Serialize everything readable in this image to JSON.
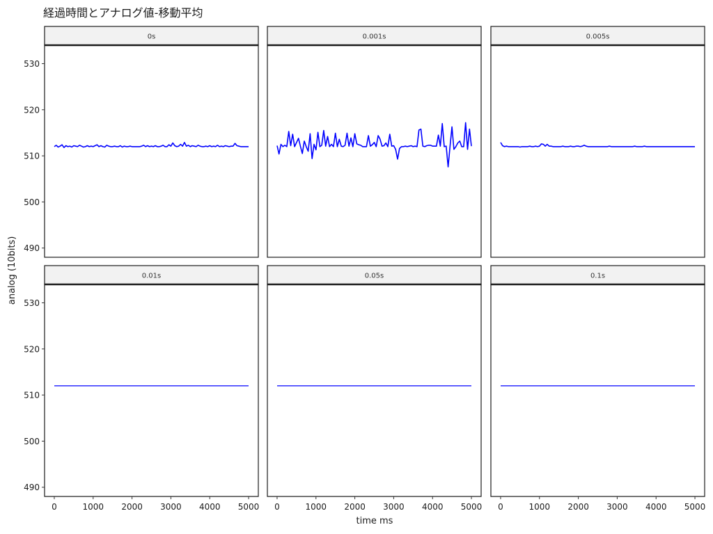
{
  "chart_data": {
    "type": "line",
    "title": "経過時間とアナログ値-移動平均",
    "xlabel": "time ms",
    "ylabel": "analog (10bits)",
    "xlim": [
      -250,
      5250
    ],
    "ylim": [
      488,
      534
    ],
    "x_ticks": [
      0,
      1000,
      2000,
      3000,
      4000,
      5000
    ],
    "y_ticks": [
      490,
      500,
      510,
      520,
      530
    ],
    "grid": false,
    "legend": "none",
    "line_color": "#0000ff",
    "facet_layout": {
      "rows": 2,
      "cols": 3
    },
    "facets": [
      {
        "label": "0s",
        "x_step": 50,
        "values": [
          512,
          512.3,
          511.9,
          512.1,
          512.4,
          511.8,
          512.2,
          512,
          512.1,
          511.9,
          512.2,
          512.1,
          512,
          512.3,
          512.1,
          511.9,
          512,
          512.2,
          512,
          512.1,
          512,
          512.2,
          512.4,
          512,
          512.2,
          512,
          511.9,
          512.3,
          512.1,
          512,
          512,
          512.1,
          512,
          512,
          512.2,
          511.9,
          512.1,
          512,
          512,
          512.1,
          512,
          512,
          512,
          512,
          512,
          512.1,
          512.3,
          512,
          512.2,
          512,
          512.1,
          512,
          512.2,
          512,
          512,
          512.1,
          512.3,
          512,
          512,
          512.4,
          512.1,
          512.8,
          512.2,
          512,
          512.1,
          512.5,
          512.1,
          512.9,
          512.1,
          512.3,
          512,
          512.2,
          512.1,
          512,
          512.3,
          512.1,
          512,
          512,
          512.1,
          512,
          512.2,
          512,
          512.1,
          512,
          512.3,
          512,
          512.1,
          512,
          512.2,
          512.1,
          512,
          512.1,
          512.1,
          512.7,
          512.2,
          512.1,
          512,
          512,
          512,
          512,
          512
        ]
      },
      {
        "label": "0.001s",
        "x_step": 50,
        "values": [
          512.2,
          510.4,
          512.5,
          512,
          512.3,
          512,
          515.3,
          512.2,
          514.7,
          512,
          512.9,
          513.8,
          512.1,
          510.5,
          513.2,
          512,
          511,
          514.8,
          509.4,
          512.5,
          511.3,
          515.1,
          512,
          512.3,
          515.5,
          512.1,
          514.2,
          512,
          512.5,
          512,
          514.9,
          512,
          513.6,
          512.1,
          512,
          512.3,
          514.9,
          512.1,
          513.9,
          512,
          514.8,
          512.6,
          512.4,
          512.3,
          512,
          512,
          512,
          514.4,
          512.1,
          512.4,
          512.9,
          512,
          514.4,
          513.6,
          512.1,
          512.2,
          512.8,
          512,
          514.7,
          512.1,
          512.2,
          511.4,
          509.3,
          511.6,
          512,
          512,
          512.1,
          512,
          512.1,
          512.2,
          512,
          512.1,
          512,
          515.6,
          515.8,
          512.1,
          512,
          512.2,
          512.3,
          512.3,
          512.1,
          512.1,
          512.1,
          514.5,
          512.1,
          517,
          512,
          512.1,
          507.6,
          512,
          516.3,
          511.4,
          512,
          512.8,
          513.2,
          512,
          512,
          517.2,
          511.4,
          515.8,
          512.1
        ]
      },
      {
        "label": "0.005s",
        "x_step": 50,
        "values": [
          512.9,
          512.2,
          512,
          512.1,
          512,
          512,
          512,
          512,
          512,
          512,
          511.9,
          512,
          512,
          512,
          512,
          512.1,
          512,
          512,
          512.1,
          512,
          512.1,
          512.6,
          512.5,
          512.1,
          512.5,
          512.1,
          512.1,
          512,
          512,
          512,
          512,
          512,
          512.1,
          512,
          512,
          512,
          512.1,
          512,
          512,
          512.1,
          512.1,
          512,
          512.1,
          512.3,
          512.1,
          512,
          512,
          512,
          512,
          512,
          512,
          512,
          512,
          512,
          512,
          512,
          512.1,
          512,
          512,
          512,
          512,
          512,
          512,
          512,
          512,
          512,
          512,
          512,
          512,
          512.1,
          512,
          512,
          512,
          512,
          512.1,
          512,
          512,
          512,
          512,
          512,
          512,
          512,
          512,
          512,
          512,
          512,
          512,
          512,
          512,
          512,
          512,
          512,
          512,
          512,
          512,
          512,
          512,
          512,
          512,
          512,
          512
        ]
      },
      {
        "label": "0.01s",
        "x_step": 5000,
        "values": [
          512,
          512
        ]
      },
      {
        "label": "0.05s",
        "x_step": 5000,
        "values": [
          512,
          512
        ]
      },
      {
        "label": "0.1s",
        "x_step": 5000,
        "values": [
          512,
          512
        ]
      }
    ]
  }
}
